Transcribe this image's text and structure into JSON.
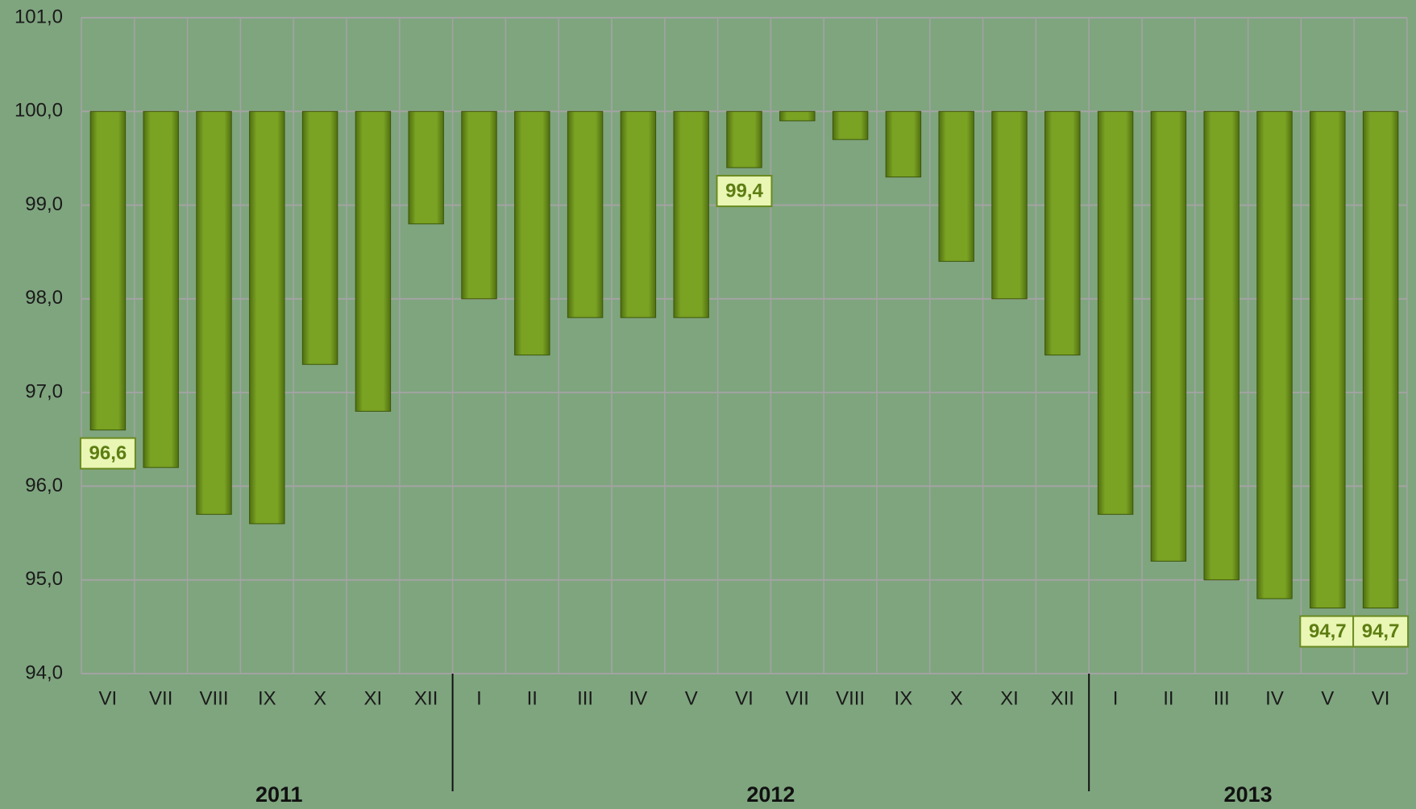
{
  "chart_data": {
    "type": "bar",
    "groups": [
      {
        "label": "2011",
        "categories": [
          "VI",
          "VII",
          "VIII",
          "IX",
          "X",
          "XI",
          "XII"
        ]
      },
      {
        "label": "2012",
        "categories": [
          "I",
          "II",
          "III",
          "IV",
          "V",
          "VI",
          "VII",
          "VIII",
          "IX",
          "X",
          "XI",
          "XII"
        ]
      },
      {
        "label": "2013",
        "categories": [
          "I",
          "II",
          "III",
          "IV",
          "V",
          "VI"
        ]
      }
    ],
    "values": [
      96.6,
      96.2,
      95.7,
      95.6,
      97.3,
      96.8,
      98.8,
      98.0,
      97.4,
      97.8,
      97.8,
      97.8,
      99.4,
      99.9,
      99.7,
      99.3,
      98.4,
      98.0,
      97.4,
      95.7,
      95.2,
      95.0,
      94.8,
      94.7,
      94.7
    ],
    "value_labels": [
      "96,6",
      null,
      null,
      null,
      null,
      null,
      null,
      null,
      null,
      null,
      null,
      null,
      "99,4",
      null,
      null,
      null,
      null,
      null,
      null,
      null,
      null,
      null,
      null,
      "94,7",
      "94,7"
    ],
    "baseline": 100,
    "color": "#7aa223",
    "ylim": [
      94,
      101
    ],
    "yticks": [
      {
        "value": 94,
        "label": "94,0"
      },
      {
        "value": 95,
        "label": "95,0"
      },
      {
        "value": 96,
        "label": "96,0"
      },
      {
        "value": 97,
        "label": "97,0"
      },
      {
        "value": 98,
        "label": "98,0"
      },
      {
        "value": 99,
        "label": "99,0"
      },
      {
        "value": 100,
        "label": "100,0"
      },
      {
        "value": 101,
        "label": "101,0"
      }
    ],
    "grid": true
  }
}
